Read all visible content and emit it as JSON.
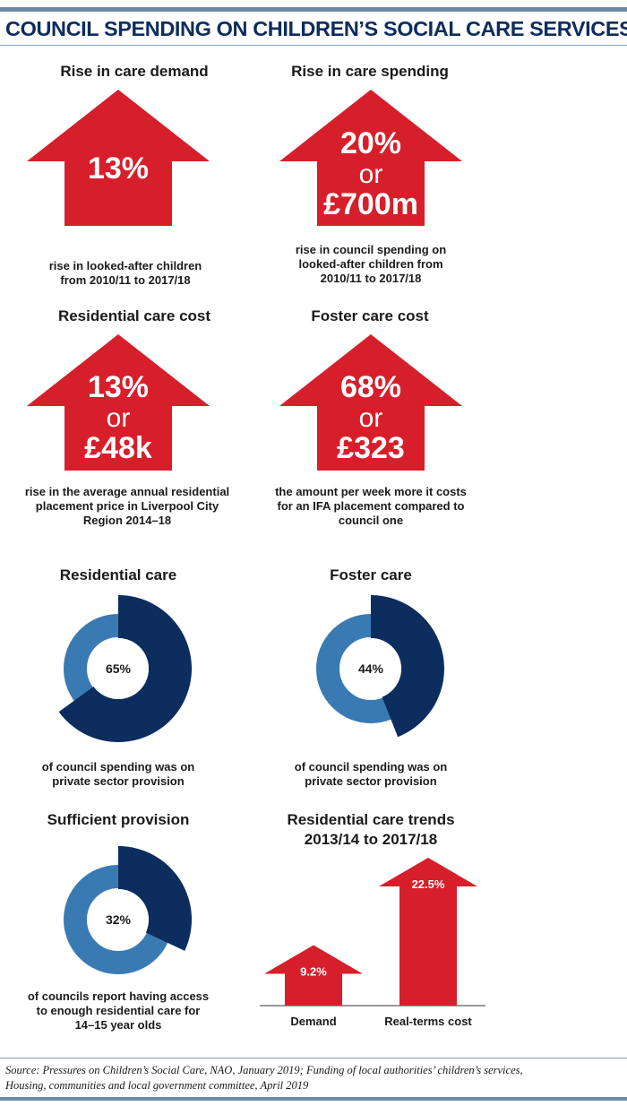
{
  "title": "COUNCIL SPENDING ON CHILDREN’S SOCIAL CARE SERVICES",
  "colors": {
    "red": "#d71f2b",
    "navy": "#0c2d5e",
    "blue": "#3a7ab3",
    "title": "#0d2d5e"
  },
  "panels": {
    "demand": {
      "heading": "Rise in care demand",
      "arrow_lines": [
        "13%"
      ],
      "caption_lines": [
        "rise in looked-after children",
        "from 2010/11 to 2017/18"
      ]
    },
    "spending": {
      "heading": "Rise in care spending",
      "arrow_lines": [
        "20%",
        "or",
        "£700m"
      ],
      "caption_lines": [
        "rise in council spending on",
        "looked-after children from",
        "2010/11 to 2017/18"
      ]
    },
    "residential_cost": {
      "heading": "Residential care cost",
      "arrow_lines": [
        "13%",
        "or",
        "£48k"
      ],
      "caption_lines": [
        "rise in the average annual residential",
        "placement price in Liverpool City",
        "Region 2014–18"
      ]
    },
    "foster_cost": {
      "heading": "Foster care cost",
      "arrow_lines": [
        "68%",
        "or",
        "£323"
      ],
      "caption_lines": [
        "the amount per week more it costs",
        "for an IFA placement compared to",
        "council one"
      ]
    }
  },
  "chart_data": [
    {
      "type": "pie",
      "title": "Residential care",
      "values": [
        65
      ],
      "label": "65%",
      "caption_lines": [
        "of council spending was on",
        "private sector provision"
      ]
    },
    {
      "type": "pie",
      "title": "Foster care",
      "values": [
        44
      ],
      "label": "44%",
      "caption_lines": [
        "of council spending was on",
        "private sector provision"
      ]
    },
    {
      "type": "pie",
      "title": "Sufficient provision",
      "values": [
        32
      ],
      "label": "32%",
      "caption_lines": [
        "of councils report having access",
        "to enough residential care for",
        "14–15 year olds"
      ]
    },
    {
      "type": "bar",
      "title_lines": [
        "Residential care trends",
        "2013/14 to 2017/18"
      ],
      "categories": [
        "Demand",
        "Real-terms cost"
      ],
      "values": [
        9.2,
        22.5
      ],
      "labels": [
        "9.2%",
        "22.5%"
      ]
    }
  ],
  "source_lines": [
    "Source: Pressures on Children’s Social Care, NAO, January 2019; Funding of local authorities’ children’s services,",
    "Housing, communities and local government committee, April 2019"
  ]
}
